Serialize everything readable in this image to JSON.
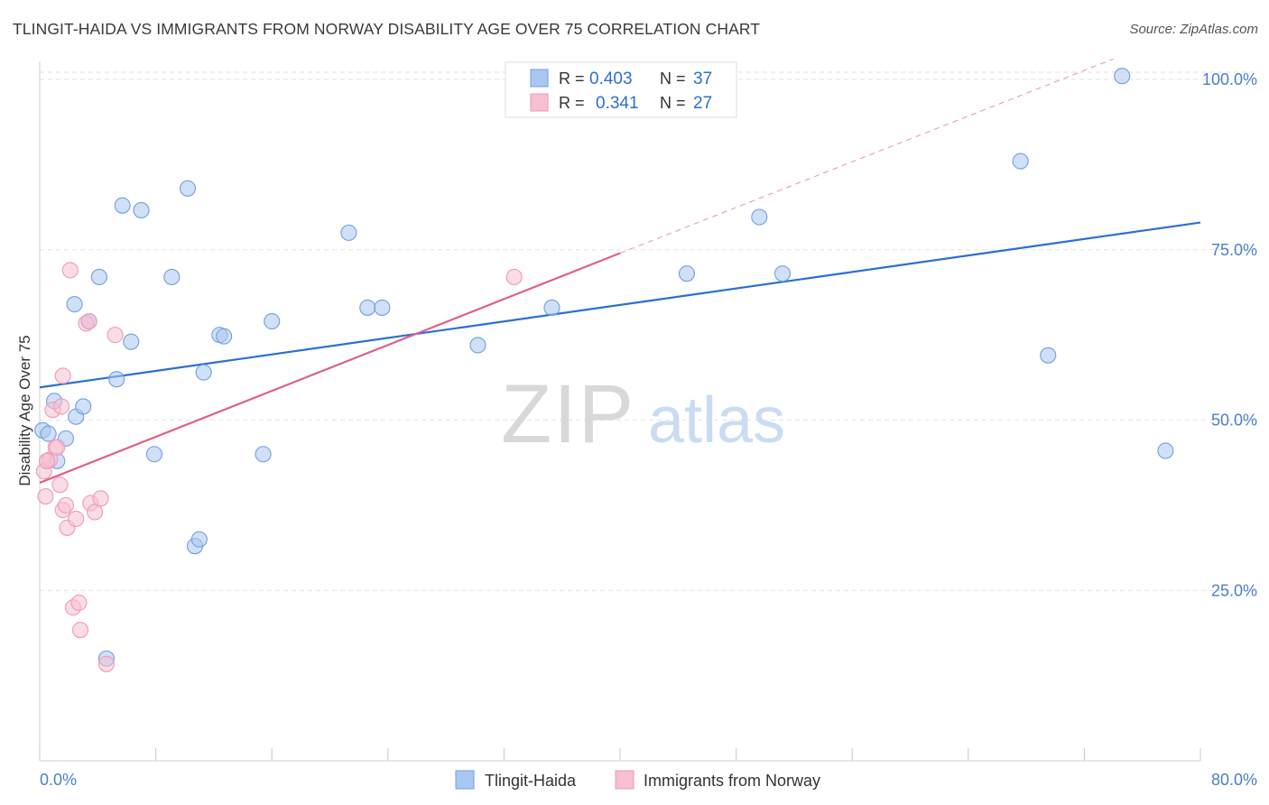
{
  "chart_data": {
    "type": "scatter",
    "title": "TLINGIT-HAIDA VS IMMIGRANTS FROM NORWAY DISABILITY AGE OVER 75 CORRELATION CHART",
    "source": "Source: ZipAtlas.com",
    "ylabel": "Disability Age Over 75",
    "xlabel": "",
    "xlim": [
      0,
      80
    ],
    "ylim": [
      0,
      105
    ],
    "x_tick_labels": [
      "0.0%",
      "80.0%"
    ],
    "y_ticks": [
      25,
      50,
      75,
      100
    ],
    "y_tick_labels": [
      "25.0%",
      "50.0%",
      "75.0%",
      "100.0%"
    ],
    "grid": true,
    "legend_position": "top-center",
    "watermark": {
      "part1": "ZIP",
      "part2": "atlas"
    },
    "series": [
      {
        "name": "Tlingit-Haida",
        "color": "#6f9fe0",
        "fill": "#a9c7f0",
        "line_color": "#2b6fd1",
        "stats": {
          "r_label": "R =",
          "r_value": "0.403",
          "n_label": "N =",
          "n_value": "37"
        },
        "trend": {
          "x": [
            0,
            80
          ],
          "y": [
            54.8,
            79.0
          ]
        },
        "points": [
          [
            0.2,
            48.5
          ],
          [
            0.6,
            48.0
          ],
          [
            1.0,
            52.8
          ],
          [
            1.2,
            44.0
          ],
          [
            1.8,
            47.3
          ],
          [
            2.4,
            67.0
          ],
          [
            2.5,
            50.5
          ],
          [
            3.0,
            52.0
          ],
          [
            3.4,
            64.5
          ],
          [
            4.1,
            71.0
          ],
          [
            4.6,
            15.0
          ],
          [
            5.3,
            56.0
          ],
          [
            5.7,
            81.5
          ],
          [
            6.3,
            61.5
          ],
          [
            7.0,
            80.8
          ],
          [
            7.9,
            45.0
          ],
          [
            9.1,
            71.0
          ],
          [
            10.2,
            84.0
          ],
          [
            10.7,
            31.5
          ],
          [
            11.0,
            32.5
          ],
          [
            11.3,
            57.0
          ],
          [
            12.4,
            62.5
          ],
          [
            12.7,
            62.3
          ],
          [
            15.4,
            45.0
          ],
          [
            16.0,
            64.5
          ],
          [
            21.3,
            77.5
          ],
          [
            22.6,
            66.5
          ],
          [
            23.6,
            66.5
          ],
          [
            30.2,
            61.0
          ],
          [
            35.3,
            66.5
          ],
          [
            44.6,
            71.5
          ],
          [
            49.6,
            79.8
          ],
          [
            51.2,
            71.5
          ],
          [
            67.6,
            88.0
          ],
          [
            69.5,
            59.5
          ],
          [
            74.6,
            100.5
          ],
          [
            77.6,
            45.5
          ]
        ]
      },
      {
        "name": "Immigrants from Norway",
        "color": "#ef9ab8",
        "fill": "#f6bfd2",
        "line_color": "#e0608c",
        "stats": {
          "r_label": "R =",
          "r_value": "0.341",
          "n_label": "N =",
          "n_value": "27"
        },
        "trend": {
          "x": [
            0,
            40
          ],
          "y": [
            40.8,
            74.5
          ],
          "extend_to": [
            74,
            103
          ]
        },
        "points": [
          [
            0.3,
            42.5
          ],
          [
            0.4,
            38.8
          ],
          [
            0.5,
            44.0
          ],
          [
            0.7,
            44.2
          ],
          [
            0.9,
            51.5
          ],
          [
            1.1,
            46.0
          ],
          [
            1.4,
            40.5
          ],
          [
            1.5,
            52.0
          ],
          [
            1.6,
            36.8
          ],
          [
            1.6,
            56.5
          ],
          [
            1.8,
            37.5
          ],
          [
            1.9,
            34.2
          ],
          [
            2.1,
            72.0
          ],
          [
            2.3,
            22.5
          ],
          [
            2.5,
            35.5
          ],
          [
            2.7,
            23.2
          ],
          [
            2.8,
            19.2
          ],
          [
            3.2,
            64.2
          ],
          [
            3.4,
            64.5
          ],
          [
            3.5,
            37.8
          ],
          [
            3.8,
            36.5
          ],
          [
            4.2,
            38.5
          ],
          [
            4.6,
            14.2
          ],
          [
            5.2,
            62.5
          ],
          [
            32.7,
            71.0
          ],
          [
            0.5,
            44.0
          ],
          [
            1.2,
            46.0
          ]
        ]
      }
    ]
  }
}
